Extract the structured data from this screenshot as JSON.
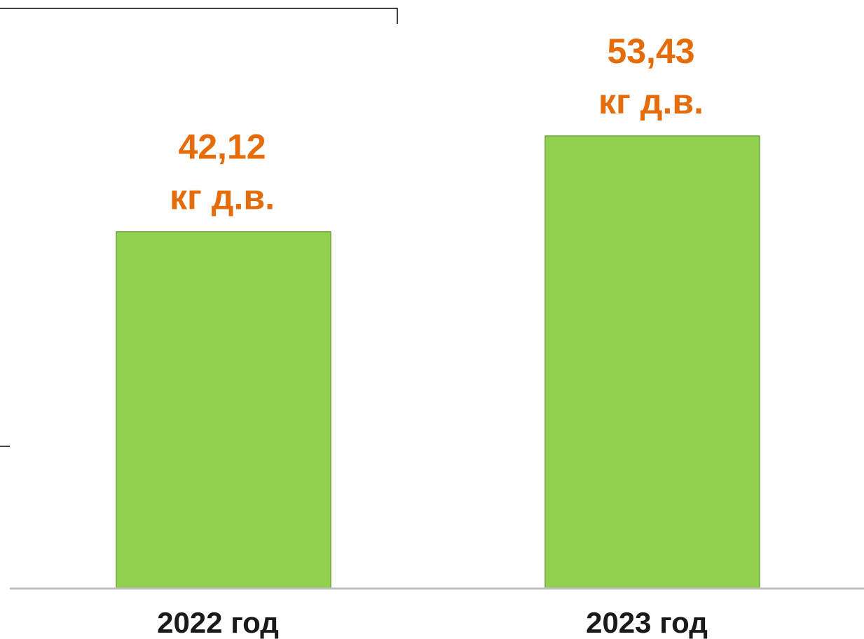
{
  "chart_data": {
    "type": "bar",
    "categories": [
      "2022 год",
      "2023 год"
    ],
    "values": [
      42.12,
      53.43
    ],
    "value_labels": [
      {
        "value": "42,12",
        "unit": "кг д.в."
      },
      {
        "value": "53,43",
        "unit": "кг д.в."
      }
    ],
    "grid": false,
    "legend": "none",
    "bar_color": "#92d050",
    "bar_border_color": "#6fa83a",
    "label_color": "#e46c0a",
    "axis_color": "#bfbfbf"
  }
}
